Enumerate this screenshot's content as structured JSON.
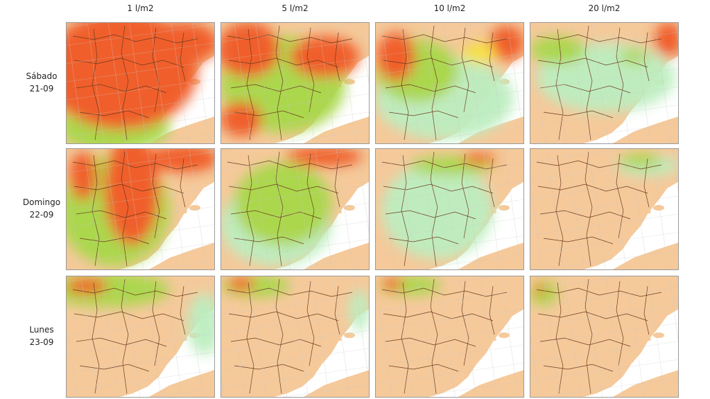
{
  "columns": [
    "1 l/m2",
    "5 l/m2",
    "10 l/m2",
    "20 l/m2"
  ],
  "rows": [
    {
      "day": "Sábado",
      "date": "21-09"
    },
    {
      "day": "Domingo",
      "date": "22-09"
    },
    {
      "day": "Lunes",
      "date": "23-09"
    }
  ]
}
